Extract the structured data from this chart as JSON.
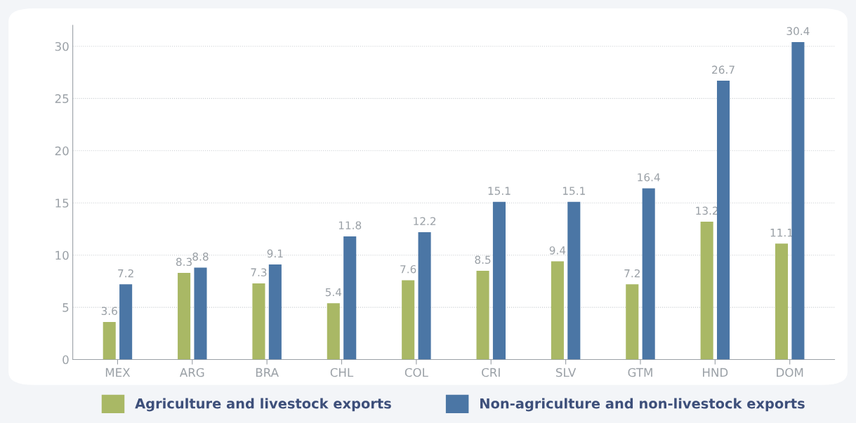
{
  "chart_data": {
    "type": "bar",
    "categories": [
      "MEX",
      "ARG",
      "BRA",
      "CHL",
      "COL",
      "CRI",
      "SLV",
      "GTM",
      "HND",
      "DOM"
    ],
    "series": [
      {
        "name": "Agriculture and livestock exports",
        "color": "#a9b865",
        "values": [
          3.6,
          8.3,
          7.3,
          5.4,
          7.6,
          8.5,
          9.4,
          7.2,
          13.2,
          11.1
        ]
      },
      {
        "name": "Non-agriculture and non-livestock exports",
        "color": "#4b76a5",
        "values": [
          7.2,
          8.8,
          9.1,
          11.8,
          12.2,
          15.1,
          15.1,
          16.4,
          26.7,
          30.4
        ]
      }
    ],
    "ylim": [
      0,
      32
    ],
    "yticks": [
      0,
      5,
      10,
      15,
      20,
      25,
      30
    ],
    "grid": "y",
    "legend": "bottom",
    "data_labels": true
  }
}
